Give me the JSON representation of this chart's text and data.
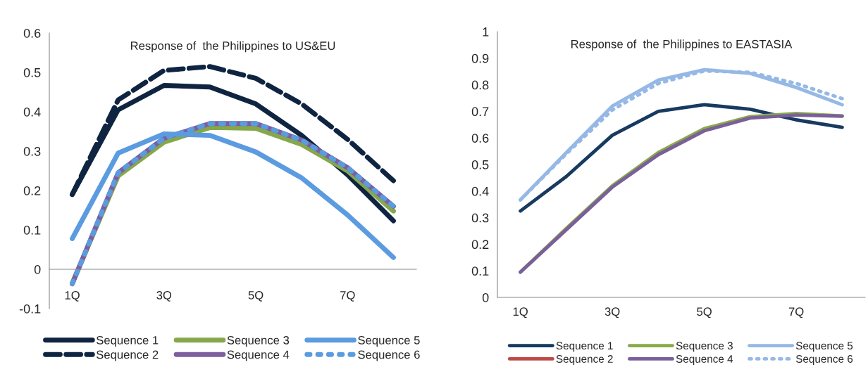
{
  "chart_data": [
    {
      "type": "line",
      "title": "Response of  the Philippines to US&EU",
      "categories": [
        "1Q",
        null,
        "3Q",
        null,
        "5Q",
        null,
        "7Q",
        null
      ],
      "ylim": [
        -0.1,
        0.6
      ],
      "yticks": [
        -0.1,
        0,
        0.1,
        0.2,
        0.3,
        0.4,
        0.5,
        0.6
      ],
      "grid": false,
      "legend": "bottom",
      "series": [
        {
          "name": "Sequence 1",
          "color": "#0f2440",
          "line_style": "solid",
          "values": [
            0.19,
            0.405,
            0.467,
            0.463,
            0.42,
            0.34,
            0.24,
            0.123
          ]
        },
        {
          "name": "Sequence 2",
          "color": "#0f2440",
          "line_style": "dashed",
          "values": [
            0.19,
            0.43,
            0.505,
            0.515,
            0.485,
            0.42,
            0.33,
            0.225
          ]
        },
        {
          "name": "Sequence 3",
          "color": "#86a84a",
          "line_style": "solid",
          "values": [
            -0.035,
            0.237,
            0.323,
            0.36,
            0.358,
            0.317,
            0.25,
            0.148
          ]
        },
        {
          "name": "Sequence 4",
          "color": "#7d5e9e",
          "line_style": "solid",
          "values": [
            -0.037,
            0.245,
            0.333,
            0.37,
            0.37,
            0.328,
            0.258,
            0.16
          ]
        },
        {
          "name": "Sequence 5",
          "color": "#5b9be0",
          "line_style": "solid",
          "values": [
            0.078,
            0.295,
            0.344,
            0.34,
            0.298,
            0.232,
            0.138,
            0.03
          ]
        },
        {
          "name": "Sequence 6",
          "color": "#5b9be0",
          "line_style": "dotted",
          "values": [
            -0.037,
            0.245,
            0.333,
            0.37,
            0.37,
            0.328,
            0.258,
            0.16
          ]
        }
      ]
    },
    {
      "type": "line",
      "title": "Response of  the Philippines to EASTASIA",
      "categories": [
        "1Q",
        null,
        "3Q",
        null,
        "5Q",
        null,
        "7Q",
        null
      ],
      "ylim": [
        0,
        1
      ],
      "yticks": [
        0,
        0.1,
        0.2,
        0.3,
        0.4,
        0.5,
        0.6,
        0.7,
        0.8,
        0.9,
        1
      ],
      "grid": false,
      "legend": "bottom",
      "series": [
        {
          "name": "Sequence 1",
          "color": "#173a60",
          "line_style": "solid",
          "values": [
            0.325,
            0.455,
            0.61,
            0.7,
            0.725,
            0.708,
            0.668,
            0.64
          ]
        },
        {
          "name": "Sequence 2",
          "color": "#be4b48",
          "line_style": "solid",
          "values": [
            null,
            null,
            null,
            null,
            null,
            null,
            null,
            null
          ]
        },
        {
          "name": "Sequence 3",
          "color": "#8aaa4a",
          "line_style": "solid",
          "values": [
            0.095,
            0.26,
            0.42,
            0.545,
            0.635,
            0.68,
            0.692,
            0.683
          ]
        },
        {
          "name": "Sequence 4",
          "color": "#7a5f9a",
          "line_style": "solid",
          "values": [
            0.095,
            0.255,
            0.415,
            0.537,
            0.627,
            0.675,
            0.686,
            0.682
          ]
        },
        {
          "name": "Sequence 5",
          "color": "#95b8e6",
          "line_style": "solid",
          "values": [
            0.367,
            0.545,
            0.72,
            0.818,
            0.857,
            0.843,
            0.79,
            0.725
          ]
        },
        {
          "name": "Sequence 6",
          "color": "#95b8e6",
          "line_style": "dotted",
          "values": [
            0.367,
            0.54,
            0.705,
            0.805,
            0.852,
            0.847,
            0.805,
            0.748
          ]
        }
      ]
    }
  ]
}
